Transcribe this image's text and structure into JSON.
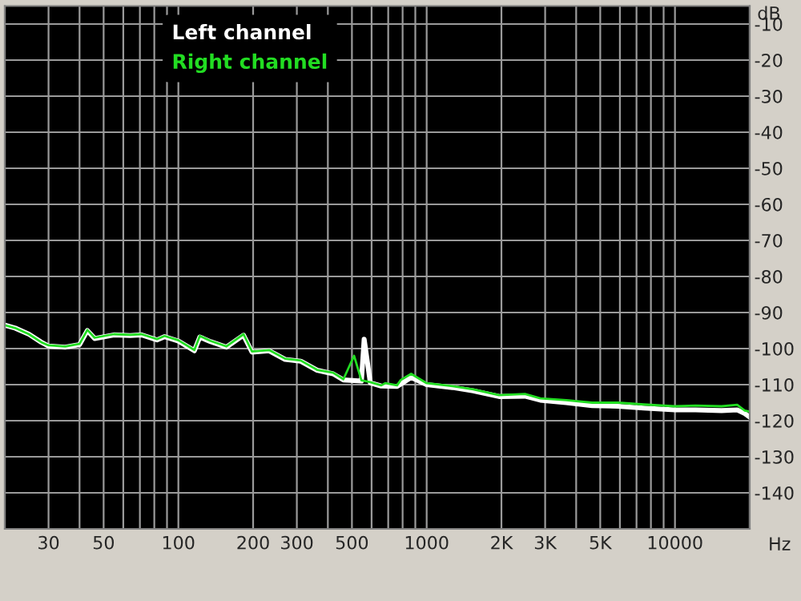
{
  "chart_data": {
    "type": "line",
    "xlabel": "Hz",
    "ylabel": "dB",
    "xlim": [
      20,
      20000
    ],
    "ylim": [
      -150,
      -5
    ],
    "log": "x",
    "grid": true,
    "legend": "top left",
    "marker": "none",
    "line_style": "solid",
    "xticks": [
      {
        "value": 20,
        "label": null
      },
      30,
      {
        "value": 40,
        "label": null
      },
      50,
      {
        "value": 60,
        "label": null
      },
      {
        "value": 70,
        "label": null
      },
      {
        "value": 80,
        "label": null
      },
      {
        "value": 90,
        "label": null
      },
      100,
      200,
      300,
      {
        "value": 400,
        "label": null
      },
      500,
      {
        "value": 600,
        "label": null
      },
      {
        "value": 700,
        "label": null
      },
      {
        "value": 800,
        "label": null
      },
      {
        "value": 900,
        "label": null
      },
      1000,
      {
        "value": 2000,
        "label": "2K"
      },
      {
        "value": 3000,
        "label": "3K"
      },
      {
        "value": 4000,
        "label": null
      },
      {
        "value": 5000,
        "label": "5K"
      },
      {
        "value": 6000,
        "label": null
      },
      {
        "value": 7000,
        "label": null
      },
      {
        "value": 8000,
        "label": null
      },
      {
        "value": 9000,
        "label": null
      },
      10000,
      {
        "value": 20000,
        "label": null
      }
    ],
    "yticks": [
      -10,
      -20,
      -30,
      -40,
      -50,
      -60,
      -70,
      -80,
      -90,
      -100,
      -110,
      -120,
      -130,
      -140
    ],
    "series": [
      {
        "name": "Left channel",
        "color": "#ffffff",
        "x": [
          20,
          22,
          25,
          28,
          30,
          35,
          40,
          43,
          46,
          55,
          64,
          71,
          82,
          88,
          100,
          116,
          122,
          135,
          156,
          183,
          198,
          232,
          269,
          311,
          362,
          420,
          462,
          546,
          560,
          593,
          656,
          760,
          866,
          1000,
          1271,
          1540,
          1957,
          2487,
          2870,
          3650,
          4640,
          5900,
          7500,
          10000,
          12100,
          15400,
          17800,
          19100,
          20000
        ],
        "values": [
          -93.5,
          -94.3,
          -96,
          -98.2,
          -99.3,
          -99.6,
          -98.9,
          -95,
          -97.2,
          -96.2,
          -96.4,
          -96.2,
          -97.6,
          -96.7,
          -97.9,
          -100.6,
          -96.8,
          -98.1,
          -99.6,
          -96.3,
          -101,
          -100.6,
          -103,
          -103.5,
          -106,
          -107,
          -108.7,
          -109,
          -97.4,
          -109.5,
          -110.4,
          -110.5,
          -108,
          -110,
          -110.8,
          -111.7,
          -113.3,
          -113.2,
          -114.3,
          -115,
          -115.8,
          -116,
          -116.5,
          -117,
          -117,
          -117.2,
          -117,
          -118,
          -119
        ]
      },
      {
        "name": "Right channel",
        "color": "#22dd22",
        "x": [
          20,
          22,
          25,
          28,
          30,
          35,
          40,
          43,
          46,
          55,
          64,
          71,
          82,
          88,
          100,
          116,
          122,
          135,
          156,
          183,
          198,
          232,
          269,
          311,
          362,
          420,
          462,
          510,
          546,
          593,
          656,
          681,
          760,
          787,
          866,
          1000,
          1271,
          1540,
          1957,
          2487,
          2870,
          3650,
          4640,
          5900,
          7500,
          10000,
          12100,
          15400,
          17800,
          19100,
          20000
        ],
        "values": [
          -93.5,
          -94.3,
          -96,
          -98.2,
          -99.1,
          -99.4,
          -98.7,
          -94.8,
          -97,
          -96,
          -96.2,
          -96,
          -97.4,
          -96.5,
          -97.7,
          -100.4,
          -96.5,
          -97.9,
          -99.4,
          -96,
          -100.8,
          -100.4,
          -102.8,
          -103.3,
          -105.9,
          -106.7,
          -108.5,
          -102,
          -108.8,
          -109.3,
          -110.2,
          -109.6,
          -110.2,
          -108.7,
          -107,
          -109.6,
          -110.4,
          -111.3,
          -112.9,
          -112.6,
          -113.8,
          -114.3,
          -115,
          -115,
          -115.5,
          -116,
          -115.8,
          -116,
          -115.6,
          -117.2,
          -117.5
        ]
      }
    ]
  }
}
